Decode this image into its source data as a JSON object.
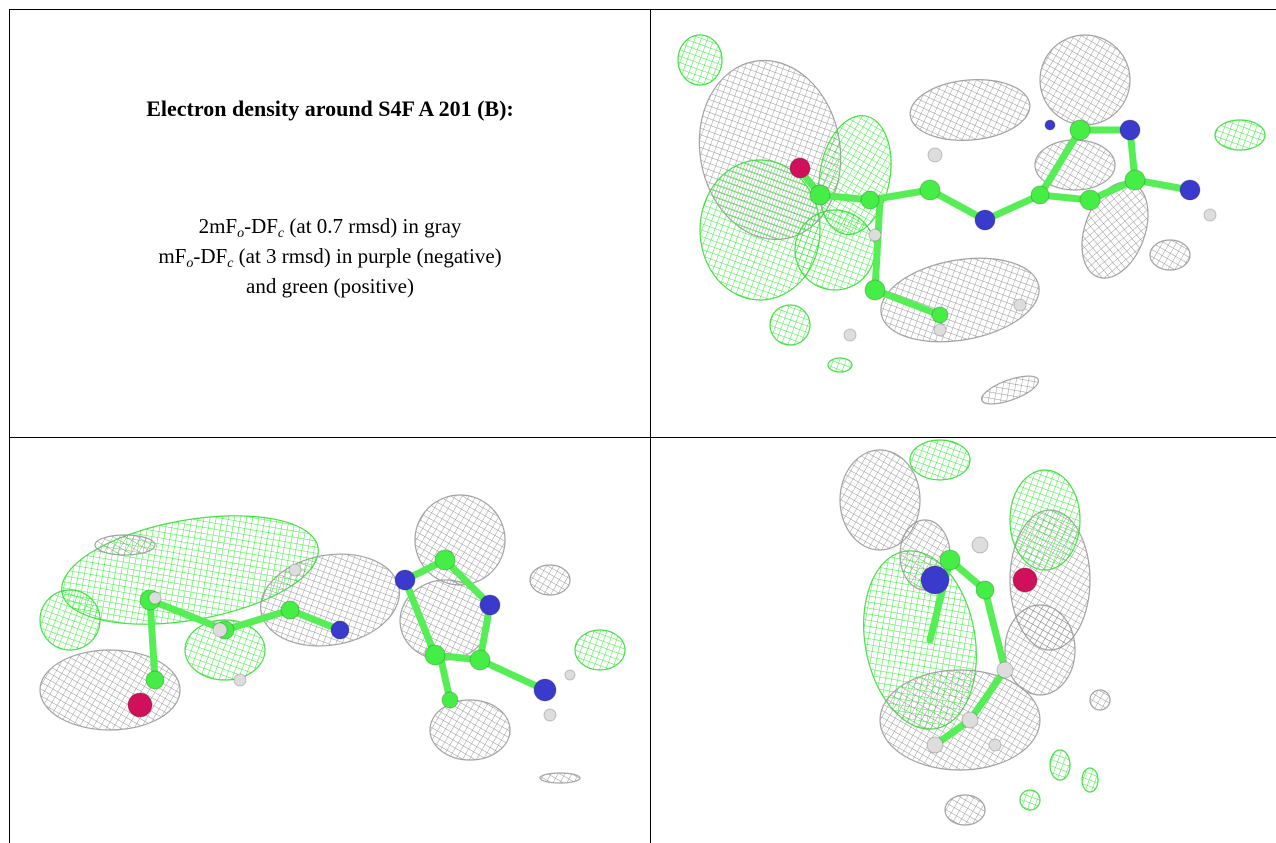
{
  "caption": {
    "title": "Electron density around S4F A 201 (B):",
    "lines": [
      {
        "parts": [
          "2mF",
          "o",
          "-DF",
          "c",
          " (at 0.7 rmsd) in gray"
        ]
      },
      {
        "parts": [
          "mF",
          "o",
          "-DF",
          "c",
          " (at 3 rmsd) in purple (negative)"
        ]
      },
      {
        "parts": [
          "and green (positive)"
        ]
      }
    ]
  }
}
